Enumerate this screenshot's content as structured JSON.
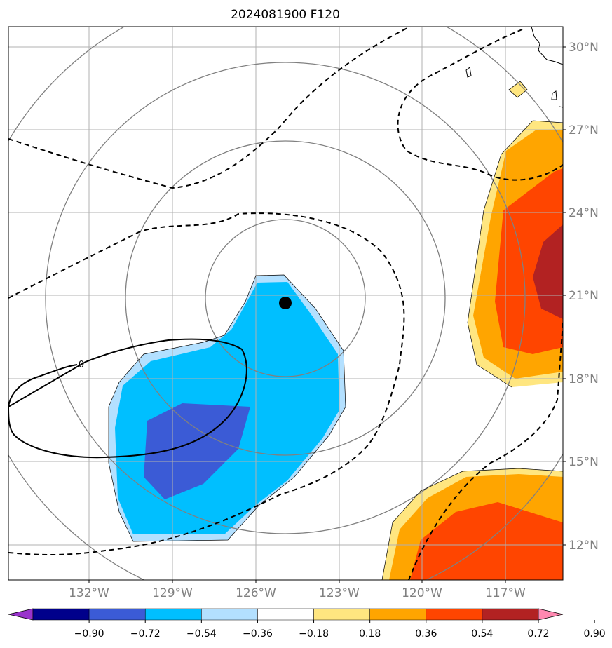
{
  "title": "2024081900 F120",
  "map": {
    "lon_range": [
      -135,
      -115
    ],
    "lat_range": [
      11,
      31
    ],
    "lat_ticks": [
      "30°N",
      "27°N",
      "24°N",
      "21°N",
      "18°N",
      "15°N",
      "12°N"
    ],
    "lon_ticks": [
      "132°W",
      "129°W",
      "126°W",
      "123°W",
      "120°W",
      "117°W"
    ],
    "storm_center": {
      "lon": -125,
      "lat": 20.8
    },
    "contour_label": "0",
    "colors": {
      "coast": "#000000",
      "grid": "#b0b0b0",
      "range_rings": "#808080"
    }
  },
  "colorbar": {
    "labels": [
      "−0.90",
      "−0.72",
      "−0.54",
      "−0.36",
      "−0.18",
      "0.18",
      "0.36",
      "0.54",
      "0.72",
      "0.90"
    ],
    "colors": [
      "#9933cc",
      "#00008b",
      "#3b5bd6",
      "#00bfff",
      "#b3e0ff",
      "#ffffff",
      "#ffe680",
      "#ffa500",
      "#ff4500",
      "#b22222",
      "#ff88b0"
    ]
  }
}
